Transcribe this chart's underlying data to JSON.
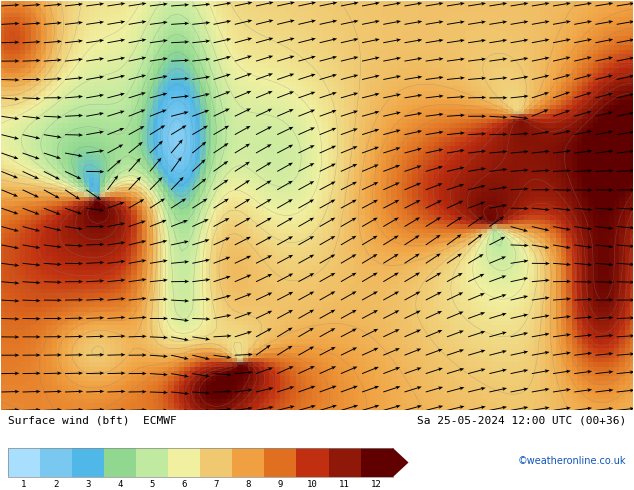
{
  "title_left": "Surface wind (bft)  ECMWF",
  "title_right": "Sa 25-05-2024 12:00 UTC (00+36)",
  "credit": "©weatheronline.co.uk",
  "colorbar_colors": [
    "#a8dfff",
    "#78c8f0",
    "#50b8e8",
    "#90d890",
    "#c0eaa0",
    "#f0f0a0",
    "#f0c870",
    "#f0a040",
    "#e07020",
    "#c03010",
    "#901808",
    "#600000"
  ],
  "fig_width": 6.34,
  "fig_height": 4.9,
  "dpi": 100
}
